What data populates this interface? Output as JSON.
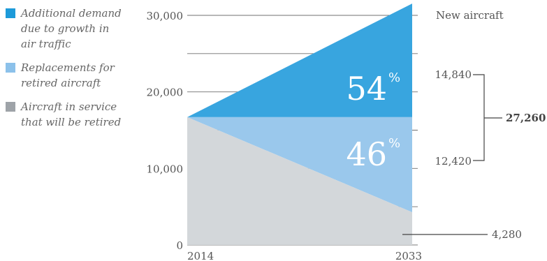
{
  "chart_data": {
    "type": "area",
    "x": [
      "2014",
      "2033"
    ],
    "ylim": [
      0,
      30000
    ],
    "yticks": [
      0,
      10000,
      20000,
      30000
    ],
    "ytick_labels": [
      "0",
      "10,000",
      "20,000",
      "30,000"
    ],
    "grid": true,
    "legend_placement": "left",
    "series": [
      {
        "name": "Additional demand due to growth in air traffic",
        "color": "#38a5df",
        "values": [
          0,
          14840
        ]
      },
      {
        "name": "Replacements for retired aircraft",
        "color": "#9ac8ec",
        "values": [
          0,
          12420
        ]
      },
      {
        "name": "Aircraft in service that will be retired",
        "color": "#d3d7da",
        "values": [
          16700,
          4280
        ]
      }
    ],
    "annotations": {
      "new_aircraft_label": "New aircraft",
      "growth_pct": "54",
      "replacement_pct": "46",
      "pct_symbol": "%",
      "growth_value": "14,840",
      "replacement_value": "12,420",
      "total_value": "27,260",
      "in_service_value": "4,280"
    }
  },
  "legend": [
    {
      "lines": [
        "Additional demand",
        "due to growth in",
        "air traffic"
      ],
      "color": "#1d9ad9"
    },
    {
      "lines": [
        "Replacements for",
        "retired aircraft"
      ],
      "color": "#8cc1ea"
    },
    {
      "lines": [
        "Aircraft in service",
        "that will be retired"
      ],
      "color": "#9ea3a8"
    }
  ]
}
